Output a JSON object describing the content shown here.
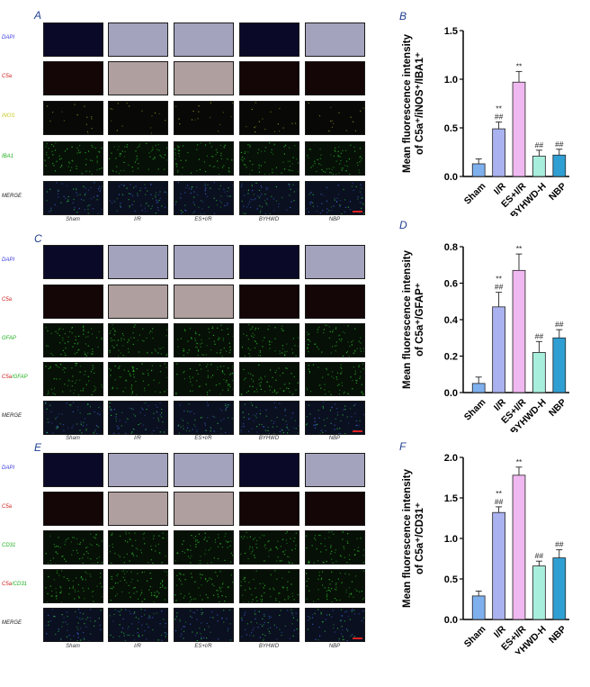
{
  "blots": [
    {
      "letter": "A",
      "rows": [
        {
          "label": "DAPI",
          "parts": [
            {
              "t": "DAPI",
              "c": "#3a3ae0"
            }
          ],
          "tint": "blue"
        },
        {
          "label": "C5a",
          "parts": [
            {
              "t": "C5a",
              "c": "#d02020"
            }
          ],
          "tint": "red"
        },
        {
          "label": "iNOS",
          "parts": [
            {
              "t": "iNOS",
              "c": "#c8c820"
            }
          ],
          "tint": "yellow"
        },
        {
          "label": "IBA1",
          "parts": [
            {
              "t": "IBA1",
              "c": "#20b020"
            }
          ],
          "tint": "green"
        },
        {
          "label": "MERGE",
          "parts": [
            {
              "t": "MERGE",
              "c": "#222222"
            }
          ],
          "tint": "merge"
        }
      ],
      "columns": [
        "Sham",
        "I/R",
        "ES+I/R",
        "BYHWD",
        "NBP"
      ]
    },
    {
      "letter": "C",
      "rows": [
        {
          "label": "DAPI",
          "parts": [
            {
              "t": "DAPI",
              "c": "#3a3ae0"
            }
          ],
          "tint": "blue"
        },
        {
          "label": "C5a",
          "parts": [
            {
              "t": "C5a",
              "c": "#d02020"
            }
          ],
          "tint": "red"
        },
        {
          "label": "GFAP",
          "parts": [
            {
              "t": "GFAP",
              "c": "#20b020"
            }
          ],
          "tint": "green"
        },
        {
          "label": "C5a/GFAP",
          "parts": [
            {
              "t": "C5a",
              "c": "#d02020"
            },
            {
              "t": "/GFAP",
              "c": "#20b020"
            }
          ],
          "tint": "green"
        },
        {
          "label": "MERGE",
          "parts": [
            {
              "t": "MERGE",
              "c": "#222222"
            }
          ],
          "tint": "merge"
        }
      ],
      "columns": [
        "Sham",
        "I/R",
        "ES+I/R",
        "BYHWD",
        "NBP"
      ]
    },
    {
      "letter": "E",
      "rows": [
        {
          "label": "DAPI",
          "parts": [
            {
              "t": "DAPI",
              "c": "#3a3ae0"
            }
          ],
          "tint": "blue"
        },
        {
          "label": "C5a",
          "parts": [
            {
              "t": "C5a",
              "c": "#d02020"
            }
          ],
          "tint": "red"
        },
        {
          "label": "CD31",
          "parts": [
            {
              "t": "CD31",
              "c": "#20b020"
            }
          ],
          "tint": "green"
        },
        {
          "label": "C5a/CD31",
          "parts": [
            {
              "t": "C5a",
              "c": "#d02020"
            },
            {
              "t": "/CD31",
              "c": "#20b020"
            }
          ],
          "tint": "green"
        },
        {
          "label": "MERGE",
          "parts": [
            {
              "t": "MERGE",
              "c": "#222222"
            }
          ],
          "tint": "merge"
        }
      ],
      "columns": [
        "Sham",
        "I/R",
        "ES+I/R",
        "BYHWD",
        "NBP"
      ]
    }
  ],
  "chart_data": [
    {
      "letter": "B",
      "type": "bar",
      "ylabel_line1": "Mean fluorescence intensity",
      "ylabel_line2": "of C5a⁺/iNOS⁺/IBA1⁺",
      "categories": [
        "Sham",
        "I/R",
        "ES+I/R",
        "BYHWD-H",
        "NBP"
      ],
      "values": [
        0.13,
        0.49,
        0.97,
        0.21,
        0.22
      ],
      "errors": [
        0.05,
        0.07,
        0.11,
        0.06,
        0.06
      ],
      "annotations": [
        [],
        [
          "**",
          "##"
        ],
        [
          "**"
        ],
        [
          "##"
        ],
        [
          "##"
        ]
      ],
      "colors": [
        "#7fb0ee",
        "#aab2ef",
        "#f0b8f0",
        "#a8eedd",
        "#2f9fd3"
      ],
      "ylim": [
        0,
        1.5
      ],
      "yticks": [
        "0.0",
        "0.5",
        "1.0",
        "1.5"
      ]
    },
    {
      "letter": "D",
      "type": "bar",
      "ylabel_line1": "Mean fluorescence intensity",
      "ylabel_line2": "of C5a⁺/GFAP⁺",
      "categories": [
        "Sham",
        "I/R",
        "ES+I/R",
        "BYHWD-H",
        "NBP"
      ],
      "values": [
        0.05,
        0.47,
        0.67,
        0.22,
        0.3
      ],
      "errors": [
        0.035,
        0.08,
        0.09,
        0.06,
        0.045
      ],
      "annotations": [
        [],
        [
          "**",
          "##"
        ],
        [
          "**"
        ],
        [
          "##"
        ],
        [
          "##"
        ]
      ],
      "colors": [
        "#7fb0ee",
        "#aab2ef",
        "#f0b8f0",
        "#a8eedd",
        "#2f9fd3"
      ],
      "ylim": [
        0,
        0.8
      ],
      "yticks": [
        "0.0",
        "0.2",
        "0.4",
        "0.6",
        "0.8"
      ]
    },
    {
      "letter": "F",
      "type": "bar",
      "ylabel_line1": "Mean fluorescence intensity",
      "ylabel_line2": "of C5a⁺/CD31⁺",
      "categories": [
        "Sham",
        "I/R",
        "ES+I/R",
        "BYHWD-H",
        "NBP"
      ],
      "values": [
        0.29,
        1.32,
        1.78,
        0.66,
        0.76
      ],
      "errors": [
        0.06,
        0.07,
        0.1,
        0.06,
        0.1
      ],
      "annotations": [
        [],
        [
          "**",
          "##"
        ],
        [
          "**"
        ],
        [
          "##"
        ],
        [
          "##"
        ]
      ],
      "colors": [
        "#7fb0ee",
        "#aab2ef",
        "#f0b8f0",
        "#a8eedd",
        "#2f9fd3"
      ],
      "ylim": [
        0,
        2.0
      ],
      "yticks": [
        "0.0",
        "0.5",
        "1.0",
        "1.5",
        "2.0"
      ]
    }
  ]
}
